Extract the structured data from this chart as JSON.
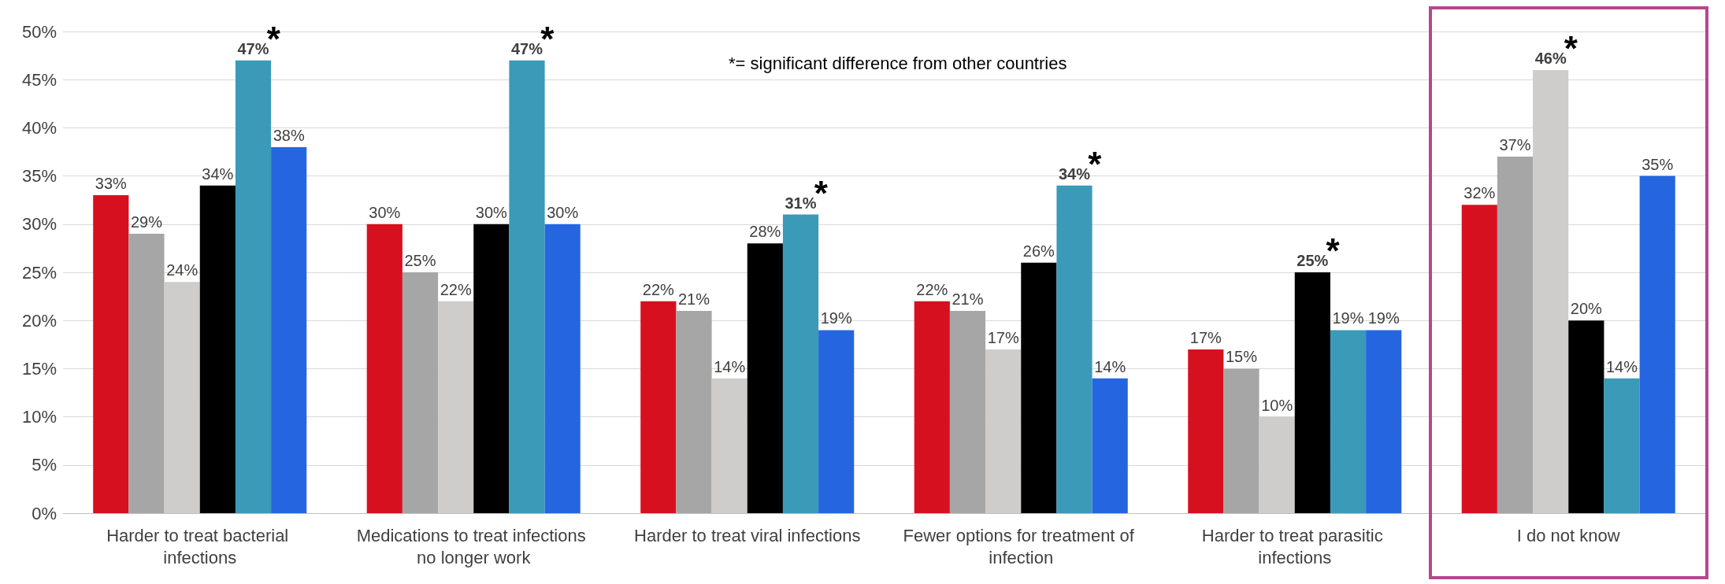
{
  "chart_data": {
    "type": "bar",
    "categories": [
      "Harder to treat bacterial infections",
      "Medications to treat infections no longer work",
      "Harder to treat viral infections",
      "Fewer options for treatment of infection",
      "Harder to treat parasitic infections",
      "I do not know"
    ],
    "series": [
      {
        "color": "#d7101f",
        "values": [
          33,
          30,
          22,
          22,
          17,
          32
        ],
        "value_labels": [
          "33%",
          "30%",
          "22%",
          "22%",
          "17%",
          "32%"
        ]
      },
      {
        "color": "#a6a6a6",
        "values": [
          29,
          25,
          21,
          21,
          15,
          37
        ],
        "value_labels": [
          "29%",
          "25%",
          "21%",
          "21%",
          "15%",
          "37%"
        ]
      },
      {
        "color": "#cfcdcb",
        "values": [
          24,
          22,
          14,
          17,
          10,
          46
        ],
        "value_labels": [
          "24%",
          "22%",
          "14%",
          "17%",
          "10%",
          "46%"
        ]
      },
      {
        "color": "#000000",
        "values": [
          34,
          30,
          28,
          26,
          25,
          20
        ],
        "value_labels": [
          "34%",
          "30%",
          "28%",
          "26%",
          "25%",
          "20%"
        ]
      },
      {
        "color": "#3a9ab8",
        "values": [
          47,
          47,
          31,
          34,
          19,
          14
        ],
        "value_labels": [
          "47%",
          "47%",
          "31%",
          "34%",
          "19%",
          "14%"
        ]
      },
      {
        "color": "#2566e0",
        "values": [
          38,
          30,
          19,
          14,
          19,
          35
        ],
        "value_labels": [
          "38%",
          "30%",
          "19%",
          "14%",
          "19%",
          "35%"
        ]
      }
    ],
    "ylim": [
      0,
      50
    ],
    "yticks": [
      {
        "value": 0,
        "label": "0%"
      },
      {
        "value": 5,
        "label": "5%"
      },
      {
        "value": 10,
        "label": "10%"
      },
      {
        "value": 15,
        "label": "15%"
      },
      {
        "value": 20,
        "label": "20%"
      },
      {
        "value": 25,
        "label": "25%"
      },
      {
        "value": 30,
        "label": "30%"
      },
      {
        "value": 35,
        "label": "35%"
      },
      {
        "value": 40,
        "label": "40%"
      },
      {
        "value": 45,
        "label": "45%"
      },
      {
        "value": 50,
        "label": "50%"
      }
    ],
    "grid": "y",
    "annotations": [
      "*= significant difference from other countries",
      "*",
      "*",
      "*",
      "*",
      "*",
      "*"
    ]
  }
}
